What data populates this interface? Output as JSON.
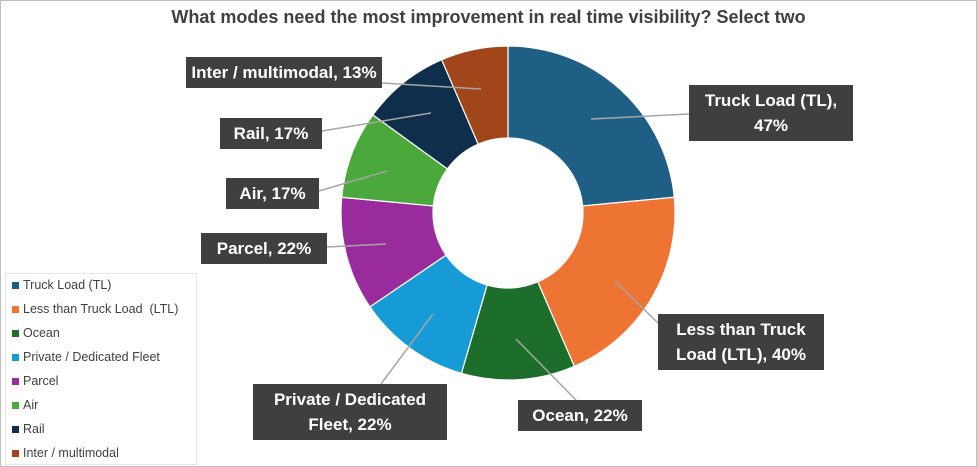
{
  "chart_data": {
    "type": "donut",
    "title": "What modes need the most improvement in real time visibility? Select two",
    "categories": [
      "Truck Load (TL)",
      "Less than Truck Load  (LTL)",
      "Ocean",
      "Private / Dedicated Fleet",
      "Parcel",
      "Air",
      "Rail",
      "Inter / multimodal"
    ],
    "values": [
      47,
      40,
      22,
      22,
      22,
      17,
      17,
      13
    ],
    "value_labels": [
      "Truck Load (TL), 47%",
      "Less than Truck Load  (LTL), 40%",
      "Ocean, 22%",
      "Private / Dedicated Fleet, 22%",
      "Parcel, 22%",
      "Air, 17%",
      "Rail, 17%",
      "Inter / multimodal, 13%"
    ],
    "colors": [
      "#1f5f85",
      "#ed7432",
      "#1e6e2b",
      "#179bd7",
      "#9a2b9d",
      "#4ba83b",
      "#0e2e4b",
      "#a0461a"
    ],
    "legend": "left-bottom"
  }
}
